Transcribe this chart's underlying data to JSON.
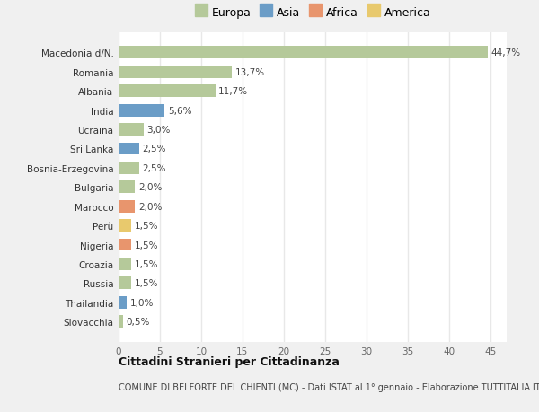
{
  "categories": [
    "Slovacchia",
    "Thailandia",
    "Russia",
    "Croazia",
    "Nigeria",
    "Perù",
    "Marocco",
    "Bulgaria",
    "Bosnia-Erzegovina",
    "Sri Lanka",
    "Ucraina",
    "India",
    "Albania",
    "Romania",
    "Macedonia d/N."
  ],
  "values": [
    0.5,
    1.0,
    1.5,
    1.5,
    1.5,
    1.5,
    2.0,
    2.0,
    2.5,
    2.5,
    3.0,
    5.6,
    11.7,
    13.7,
    44.7
  ],
  "labels": [
    "0,5%",
    "1,0%",
    "1,5%",
    "1,5%",
    "1,5%",
    "1,5%",
    "2,0%",
    "2,0%",
    "2,5%",
    "2,5%",
    "3,0%",
    "5,6%",
    "11,7%",
    "13,7%",
    "44,7%"
  ],
  "colors": [
    "#b5c99a",
    "#6b9dc7",
    "#b5c99a",
    "#b5c99a",
    "#e8956d",
    "#e8c96d",
    "#e8956d",
    "#b5c99a",
    "#b5c99a",
    "#6b9dc7",
    "#b5c99a",
    "#6b9dc7",
    "#b5c99a",
    "#b5c99a",
    "#b5c99a"
  ],
  "legend_labels": [
    "Europa",
    "Asia",
    "Africa",
    "America"
  ],
  "legend_colors": [
    "#b5c99a",
    "#6b9dc7",
    "#e8956d",
    "#e8c96d"
  ],
  "title": "Cittadini Stranieri per Cittadinanza",
  "subtitle": "COMUNE DI BELFORTE DEL CHIENTI (MC) - Dati ISTAT al 1° gennaio - Elaborazione TUTTITALIA.IT",
  "xlim": [
    0,
    47
  ],
  "xticks": [
    0,
    5,
    10,
    15,
    20,
    25,
    30,
    35,
    40,
    45
  ],
  "fig_bg_color": "#f0f0f0",
  "plot_bg_color": "#ffffff",
  "grid_color": "#e8e8e8"
}
